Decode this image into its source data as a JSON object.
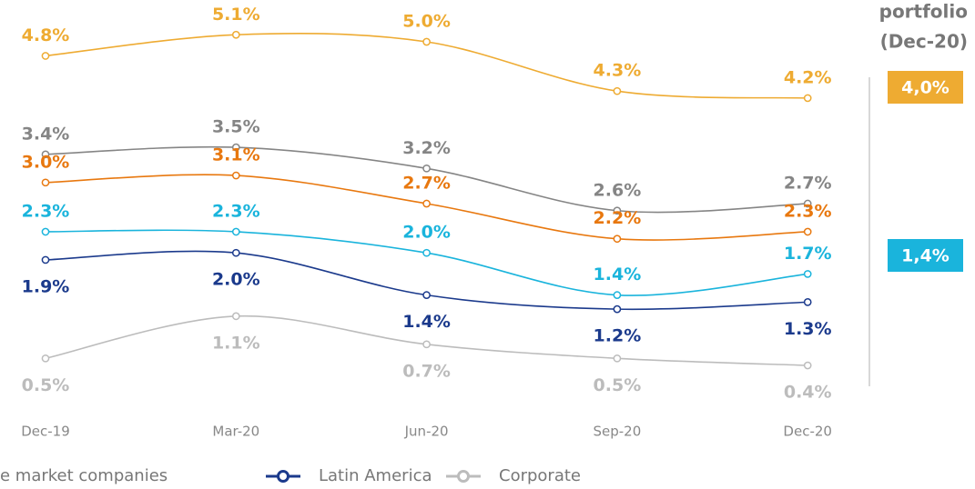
{
  "chart_data": {
    "type": "line",
    "categories": [
      "Dec-19",
      "Mar-20",
      "Jun-20",
      "Sep-20",
      "Dec-20"
    ],
    "series": [
      {
        "color": "#eeab32",
        "label_position": "above",
        "values": [
          4.8,
          5.1,
          5.0,
          4.3,
          4.2
        ],
        "value_labels": [
          "4.8%",
          "5.1%",
          "5.0%",
          "4.3%",
          "4.2%"
        ]
      },
      {
        "color": "#858585",
        "label_position": "above",
        "values": [
          3.4,
          3.5,
          3.2,
          2.6,
          2.7
        ],
        "value_labels": [
          "3.4%",
          "3.5%",
          "3.2%",
          "2.6%",
          "2.7%"
        ]
      },
      {
        "color": "#e8780f",
        "label_position": "above",
        "values": [
          3.0,
          3.1,
          2.7,
          2.2,
          2.3
        ],
        "value_labels": [
          "3.0%",
          "3.1%",
          "2.7%",
          "2.2%",
          "2.3%"
        ]
      },
      {
        "color": "#1ab4dc",
        "label_position": "above",
        "values": [
          2.3,
          2.3,
          2.0,
          1.4,
          1.7
        ],
        "value_labels": [
          "2.3%",
          "2.3%",
          "2.0%",
          "1.4%",
          "1.7%"
        ]
      },
      {
        "name": "Latin America",
        "color": "#1b3a8c",
        "label_position": "below",
        "values": [
          1.9,
          2.0,
          1.4,
          1.2,
          1.3
        ],
        "value_labels": [
          "1.9%",
          "2.0%",
          "1.4%",
          "1.2%",
          "1.3%"
        ]
      },
      {
        "name": "Corporate",
        "color": "#bcbcbc",
        "label_position": "below",
        "values": [
          0.5,
          1.1,
          0.7,
          0.5,
          0.4
        ],
        "value_labels": [
          "0.5%",
          "1.1%",
          "0.7%",
          "0.5%",
          "0.4%"
        ]
      }
    ],
    "legend_partial": "e market companies",
    "side_panel": {
      "title_lines": [
        "portfolio",
        "(Dec-20)"
      ],
      "boxes": [
        {
          "label": "4,0%",
          "color": "#eeab32"
        },
        {
          "label": "1,4%",
          "color": "#1ab4dc"
        }
      ]
    }
  }
}
